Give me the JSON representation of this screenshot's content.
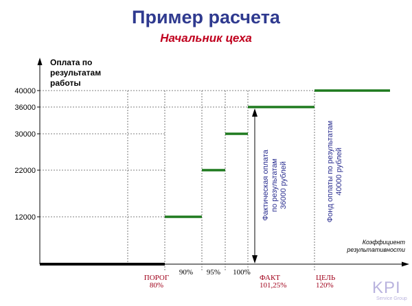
{
  "chart_data": {
    "type": "line",
    "title": "Пример расчета",
    "subtitle": "Начальник цеха",
    "ylabel": "Оплата по\nрезультатам\nработы",
    "xlabel": "Коэффициент\nрезультативности",
    "yticks": [
      40000,
      36000,
      30000,
      22000,
      12000
    ],
    "xticks": [
      {
        "label": "ПОРОГ\n80%",
        "color": "#a0001a"
      },
      {
        "label": "90%",
        "color": "#000000"
      },
      {
        "label": "95%",
        "color": "#000000"
      },
      {
        "label": "100%",
        "color": "#000000"
      },
      {
        "label": "ФАКТ\n101,25%",
        "color": "#a0001a"
      },
      {
        "label": "ЦЕЛЬ\n120%",
        "color": "#a0001a"
      }
    ],
    "baseline": {
      "from": 0,
      "to": 80,
      "value": 0
    },
    "series": [
      {
        "color": "#1e7a1e",
        "steps": [
          {
            "from": 80,
            "to": 90,
            "value": 12000
          },
          {
            "from": 90,
            "to": 95,
            "value": 22000
          },
          {
            "from": 95,
            "to": 100,
            "value": 30000
          },
          {
            "from": 101.25,
            "to": 120,
            "value": 36000
          },
          {
            "from": 120,
            "to": 136,
            "value": 40000
          }
        ]
      }
    ],
    "annotations": [
      {
        "text": "Фактическая оплата\nпо результатам\n36000 рублей",
        "color": "#2b2f90"
      },
      {
        "text": "Фонд оплаты по результатам\n40000 рублей",
        "color": "#2b2f90"
      }
    ]
  },
  "logo": {
    "text": "KPI",
    "subtext": "Service Group"
  }
}
